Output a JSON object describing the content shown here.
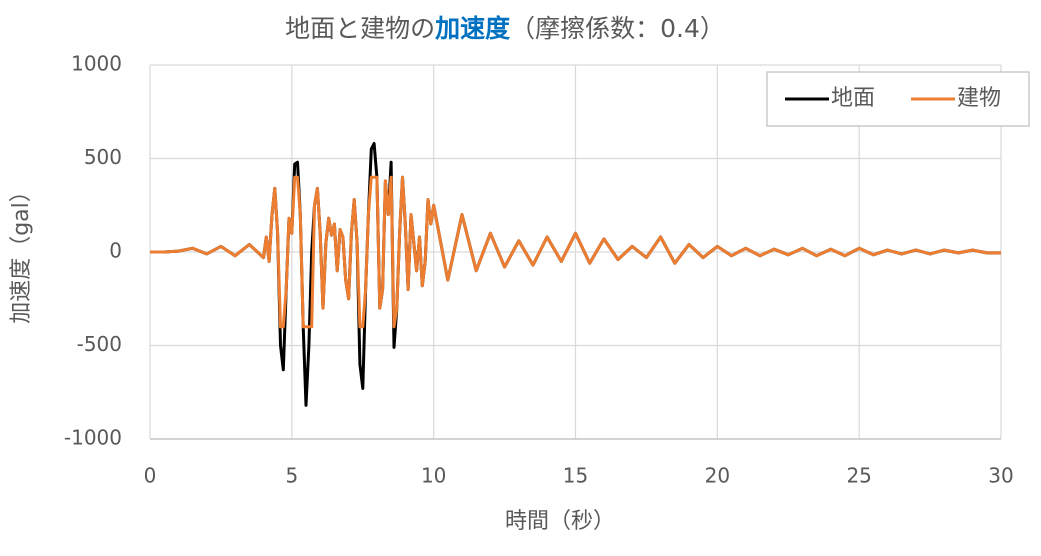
{
  "chart_data": {
    "type": "line",
    "title_parts": [
      "地面と建物の",
      "加速度",
      "（摩擦係数：0.4）"
    ],
    "title_colors": [
      "#595959",
      "#0070c0",
      "#595959"
    ],
    "x_label": "時間（秒）",
    "y_label": "加速度（gal）",
    "x": [
      0,
      0.5,
      1,
      1.5,
      2,
      2.5,
      3,
      3.5,
      4,
      4.1,
      4.2,
      4.3,
      4.4,
      4.5,
      4.6,
      4.7,
      4.8,
      4.9,
      5,
      5.1,
      5.2,
      5.3,
      5.4,
      5.5,
      5.6,
      5.7,
      5.8,
      5.9,
      6,
      6.1,
      6.2,
      6.3,
      6.4,
      6.5,
      6.6,
      6.7,
      6.8,
      6.9,
      7,
      7.1,
      7.2,
      7.3,
      7.4,
      7.5,
      7.6,
      7.7,
      7.8,
      7.9,
      8,
      8.1,
      8.2,
      8.3,
      8.4,
      8.5,
      8.6,
      8.7,
      8.8,
      8.9,
      9,
      9.1,
      9.2,
      9.3,
      9.4,
      9.5,
      9.6,
      9.7,
      9.8,
      9.9,
      10,
      10.5,
      11,
      11.5,
      12,
      12.5,
      13,
      13.5,
      14,
      14.5,
      15,
      15.5,
      16,
      16.5,
      17,
      17.5,
      18,
      18.5,
      19,
      19.5,
      20,
      20.5,
      21,
      21.5,
      22,
      22.5,
      23,
      23.5,
      24,
      24.5,
      25,
      25.5,
      26,
      26.5,
      27,
      27.5,
      28,
      28.5,
      29,
      29.5,
      30
    ],
    "series": [
      {
        "name": "地面",
        "color": "#000000",
        "values": [
          0,
          0,
          5,
          20,
          -10,
          30,
          -20,
          40,
          -30,
          80,
          -50,
          200,
          340,
          100,
          -500,
          -630,
          -200,
          180,
          100,
          470,
          480,
          200,
          -400,
          -820,
          -500,
          0,
          250,
          340,
          100,
          -300,
          50,
          180,
          90,
          150,
          -100,
          120,
          80,
          -150,
          -250,
          100,
          280,
          50,
          -600,
          -730,
          -200,
          200,
          550,
          580,
          400,
          -300,
          -200,
          380,
          200,
          480,
          -510,
          -300,
          100,
          400,
          150,
          -200,
          200,
          50,
          -100,
          80,
          -180,
          -50,
          280,
          150,
          250,
          -150,
          200,
          -100,
          100,
          -80,
          60,
          -70,
          80,
          -50,
          100,
          -60,
          70,
          -40,
          30,
          -30,
          80,
          -60,
          40,
          -30,
          30,
          -20,
          20,
          -20,
          15,
          -15,
          20,
          -20,
          15,
          -20,
          20,
          -15,
          10,
          -10,
          10,
          -10,
          10,
          -5,
          10,
          -5,
          -5
        ]
      },
      {
        "name": "建物",
        "color": "#ed7d31",
        "values": [
          0,
          0,
          5,
          20,
          -10,
          30,
          -20,
          40,
          -30,
          80,
          -50,
          200,
          340,
          100,
          -400,
          -400,
          -200,
          180,
          100,
          400,
          400,
          200,
          -400,
          -400,
          -400,
          -400,
          250,
          340,
          100,
          -300,
          50,
          180,
          90,
          150,
          -100,
          120,
          80,
          -150,
          -250,
          100,
          280,
          50,
          -400,
          -400,
          -200,
          200,
          400,
          400,
          400,
          -300,
          -200,
          380,
          200,
          400,
          -400,
          -300,
          100,
          400,
          150,
          -200,
          200,
          50,
          -100,
          80,
          -180,
          -50,
          280,
          150,
          250,
          -150,
          200,
          -100,
          100,
          -80,
          60,
          -70,
          80,
          -50,
          100,
          -60,
          70,
          -40,
          30,
          -30,
          80,
          -60,
          40,
          -30,
          30,
          -20,
          20,
          -20,
          15,
          -15,
          20,
          -20,
          15,
          -20,
          20,
          -15,
          10,
          -10,
          10,
          -10,
          10,
          -5,
          10,
          -5,
          -5
        ]
      }
    ],
    "xlim": [
      0,
      30
    ],
    "xticks": [
      0,
      5,
      10,
      15,
      20,
      25,
      30
    ],
    "ylim": [
      -1000,
      1000
    ],
    "yticks": [
      -1000,
      -500,
      0,
      500,
      1000
    ],
    "grid": true,
    "legend": "top-right"
  }
}
